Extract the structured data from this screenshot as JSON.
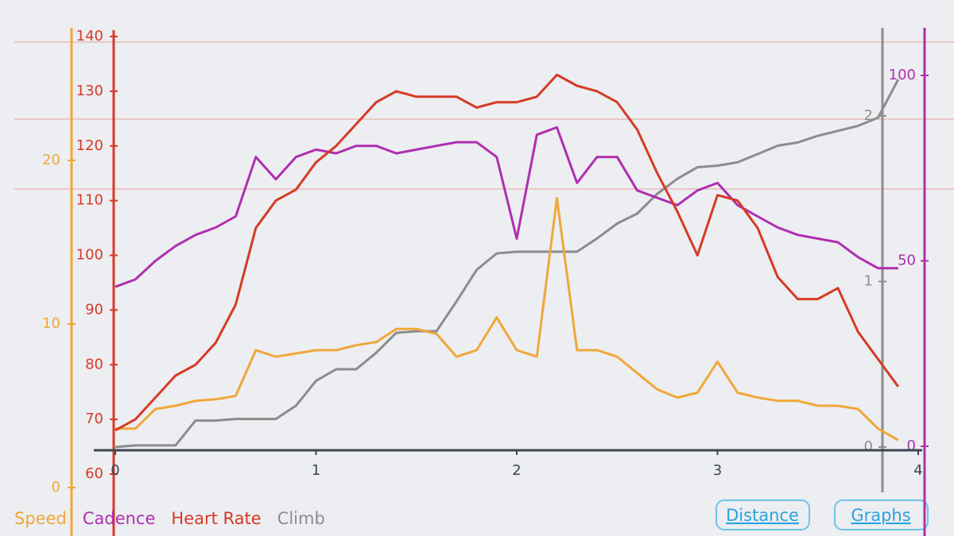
{
  "chart_data": {
    "type": "line",
    "x": [
      0,
      0.1,
      0.2,
      0.3,
      0.4,
      0.5,
      0.6,
      0.7,
      0.8,
      0.9,
      1,
      1.1,
      1.2,
      1.3,
      1.4,
      1.5,
      1.6,
      1.7,
      1.8,
      1.9,
      2,
      2.1,
      2.2,
      2.3,
      2.4,
      2.5,
      2.6,
      2.7,
      2.8,
      2.9,
      3,
      3.1,
      3.2,
      3.3,
      3.4,
      3.5,
      3.6,
      3.7,
      3.8,
      3.9
    ],
    "xlim": [
      0,
      4
    ],
    "xticks": [
      0,
      1,
      2,
      3,
      4
    ],
    "series": [
      {
        "name": "Speed",
        "color": "#f0a73a",
        "ylim": [
          0,
          20
        ],
        "yticks": [
          0,
          10,
          20
        ],
        "values": [
          3.6,
          3.6,
          4.8,
          5.0,
          5.3,
          5.4,
          5.6,
          8.4,
          8.0,
          8.2,
          8.4,
          8.4,
          8.7,
          8.9,
          9.7,
          9.7,
          9.4,
          8.0,
          8.4,
          10.4,
          8.4,
          8.0,
          17.7,
          8.4,
          8.4,
          8.0,
          7.0,
          6.0,
          5.5,
          5.8,
          7.7,
          5.8,
          5.5,
          5.3,
          5.3,
          5.0,
          5.0,
          4.8,
          3.6,
          2.9
        ]
      },
      {
        "name": "Cadence",
        "color": "#b02eb0",
        "ylim": [
          0,
          100
        ],
        "yticks": [
          0,
          50,
          100
        ],
        "values": [
          43,
          45,
          50,
          54,
          57,
          59,
          62,
          78,
          72,
          78,
          80,
          79,
          81,
          81,
          79,
          80,
          81,
          82,
          82,
          78,
          56,
          84,
          86,
          71,
          78,
          78,
          69,
          67,
          65,
          69,
          71,
          65,
          62,
          59,
          57,
          56,
          55,
          51,
          48,
          48
        ]
      },
      {
        "name": "Heart Rate",
        "color": "#d63a26",
        "ylim": [
          60,
          140
        ],
        "yticks": [
          60,
          70,
          80,
          90,
          100,
          110,
          120,
          130,
          140
        ],
        "values": [
          68,
          70,
          74,
          78,
          80,
          84,
          91,
          105,
          110,
          112,
          117,
          120,
          124,
          128,
          130,
          129,
          129,
          129,
          127,
          128,
          128,
          129,
          133,
          131,
          130,
          128,
          123,
          115,
          108,
          100,
          111,
          110,
          105,
          96,
          92,
          92,
          94,
          86,
          81,
          76
        ]
      },
      {
        "name": "Climb",
        "color": "#8c8c8c",
        "ylim": [
          0,
          2
        ],
        "yticks": [
          0,
          1,
          2
        ],
        "values": [
          0,
          0.01,
          0.01,
          0.01,
          0.16,
          0.16,
          0.17,
          0.17,
          0.17,
          0.25,
          0.4,
          0.47,
          0.47,
          0.57,
          0.69,
          0.7,
          0.7,
          0.88,
          1.07,
          1.17,
          1.18,
          1.18,
          1.18,
          1.18,
          1.26,
          1.35,
          1.41,
          1.53,
          1.62,
          1.69,
          1.7,
          1.72,
          1.77,
          1.82,
          1.84,
          1.88,
          1.91,
          1.94,
          1.99,
          2.22
        ]
      }
    ]
  },
  "buttons": [
    "Distance",
    "Graphs"
  ]
}
